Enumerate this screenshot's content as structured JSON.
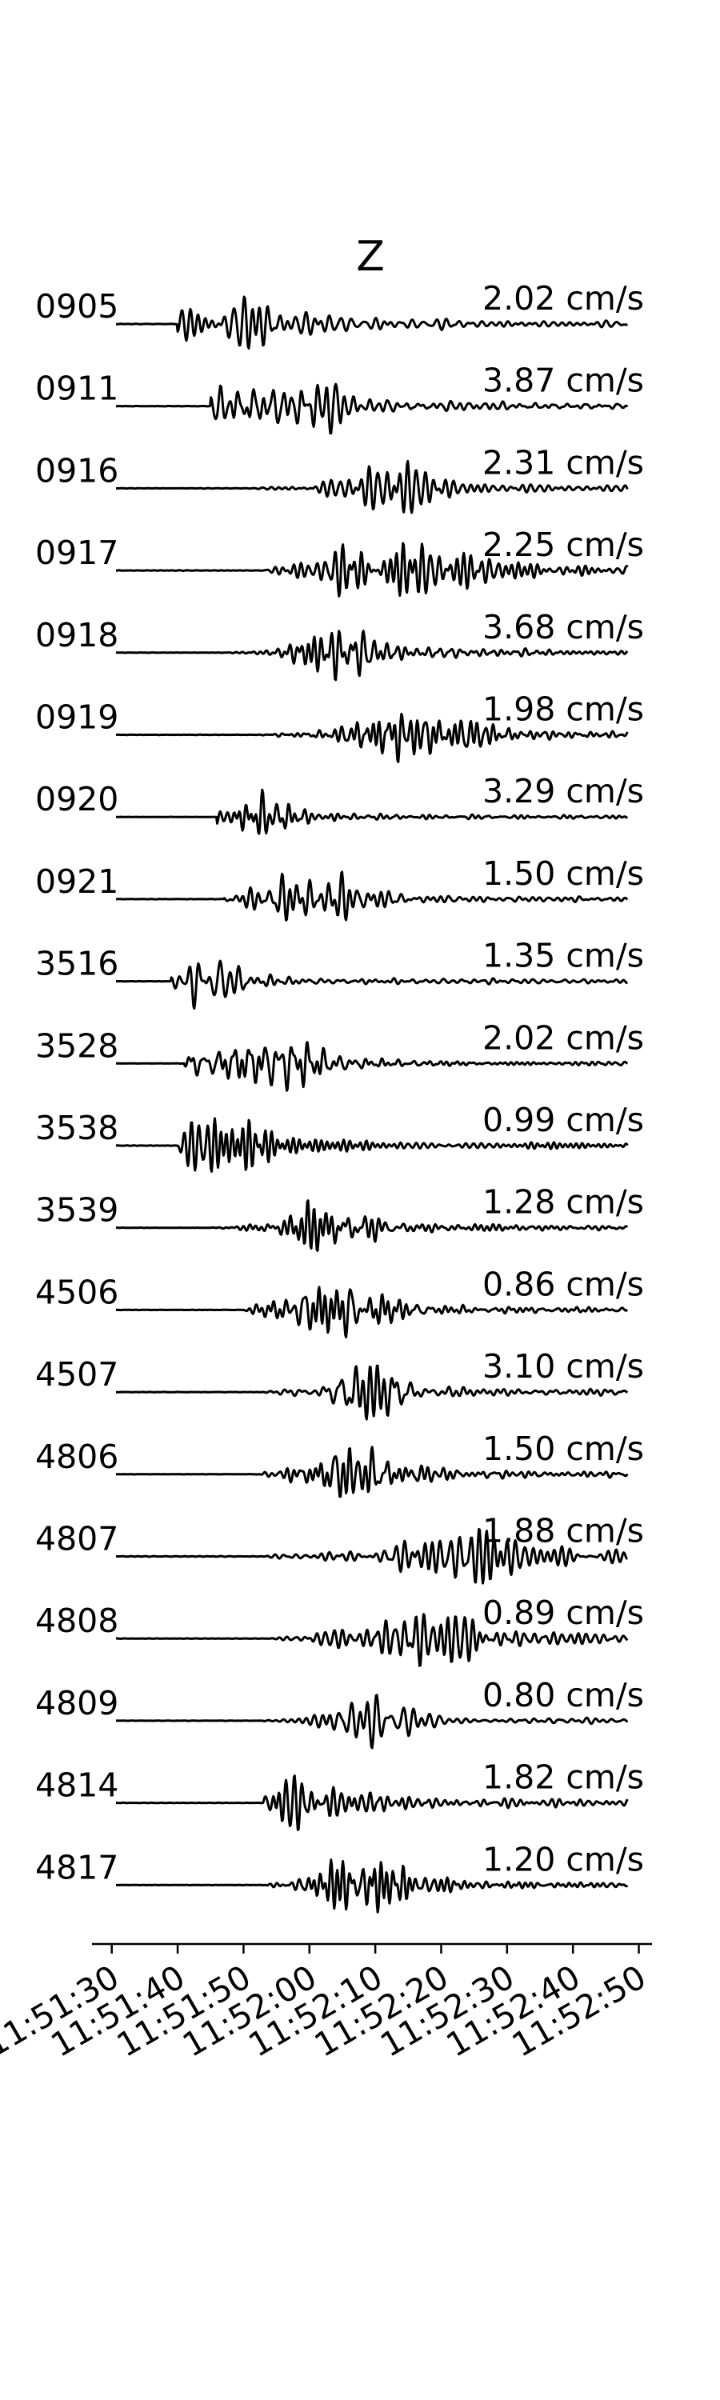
{
  "chart_data": {
    "type": "line",
    "title": "Z",
    "xlabel": "",
    "ylabel": "",
    "grid": false,
    "x_axis": {
      "type": "time",
      "range": [
        "11:51:27",
        "11:52:52"
      ],
      "ticks": [
        "11:51:30",
        "11:51:40",
        "11:51:50",
        "11:52:00",
        "11:52:10",
        "11:52:20",
        "11:52:30",
        "11:52:40",
        "11:52:50"
      ]
    },
    "traces": [
      {
        "station": "0905",
        "peak_velocity": "2.02 cm/s",
        "onset": "11:51:40",
        "arrival": "11:51:48",
        "color": "#000000"
      },
      {
        "station": "0911",
        "peak_velocity": "3.87 cm/s",
        "onset": "11:51:45",
        "arrival": "11:51:50",
        "color": "#000000"
      },
      {
        "station": "0916",
        "peak_velocity": "2.31 cm/s",
        "onset": "11:51:52",
        "arrival": "11:52:10",
        "color": "#000000"
      },
      {
        "station": "0917",
        "peak_velocity": "2.25 cm/s",
        "onset": "11:51:53",
        "arrival": "11:52:13",
        "color": "#000000"
      },
      {
        "station": "0918",
        "peak_velocity": "3.68 cm/s",
        "onset": "11:51:47",
        "arrival": "11:52:00",
        "color": "#000000"
      },
      {
        "station": "0919",
        "peak_velocity": "1.98 cm/s",
        "onset": "11:51:52",
        "arrival": "11:52:10",
        "color": "#000000"
      },
      {
        "station": "0920",
        "peak_velocity": "3.29 cm/s",
        "onset": "11:51:46",
        "arrival": "11:51:51",
        "color": "#000000"
      },
      {
        "station": "0921",
        "peak_velocity": "1.50 cm/s",
        "onset": "11:51:47",
        "arrival": "11:51:53",
        "color": "#000000"
      },
      {
        "station": "3516",
        "peak_velocity": "1.35 cm/s",
        "onset": "11:51:39",
        "arrival": "11:51:43",
        "color": "#000000"
      },
      {
        "station": "3528",
        "peak_velocity": "2.02 cm/s",
        "onset": "11:51:41",
        "arrival": "11:51:47",
        "color": "#000000"
      },
      {
        "station": "3538",
        "peak_velocity": "0.99 cm/s",
        "onset": "11:51:40",
        "arrival": "11:51:43",
        "color": "#000000"
      },
      {
        "station": "3539",
        "peak_velocity": "1.28 cm/s",
        "onset": "11:51:45",
        "arrival": "11:51:58",
        "color": "#000000"
      },
      {
        "station": "4506",
        "peak_velocity": "0.86 cm/s",
        "onset": "11:51:50",
        "arrival": "11:52:02",
        "color": "#000000"
      },
      {
        "station": "4507",
        "peak_velocity": "3.10 cm/s",
        "onset": "11:51:52",
        "arrival": "11:52:02",
        "color": "#000000"
      },
      {
        "station": "4806",
        "peak_velocity": "1.50 cm/s",
        "onset": "11:51:52",
        "arrival": "11:52:04",
        "color": "#000000"
      },
      {
        "station": "4807",
        "peak_velocity": "1.88 cm/s",
        "onset": "11:51:53",
        "arrival": "11:52:18",
        "color": "#000000"
      },
      {
        "station": "4808",
        "peak_velocity": "0.89 cm/s",
        "onset": "11:51:53",
        "arrival": "11:52:15",
        "color": "#000000"
      },
      {
        "station": "4809",
        "peak_velocity": "0.80 cm/s",
        "onset": "11:51:53",
        "arrival": "11:52:03",
        "color": "#000000"
      },
      {
        "station": "4814",
        "peak_velocity": "1.82 cm/s",
        "onset": "11:51:53",
        "arrival": "11:52:00",
        "color": "#000000"
      },
      {
        "station": "4817",
        "peak_velocity": "1.20 cm/s",
        "onset": "11:51:53",
        "arrival": "11:52:00",
        "color": "#000000"
      }
    ]
  }
}
